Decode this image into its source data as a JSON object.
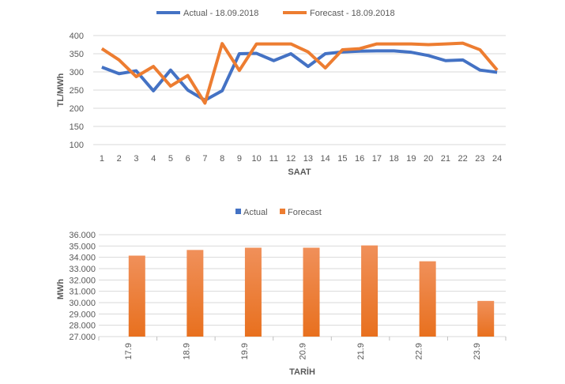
{
  "chart_data": [
    {
      "type": "line",
      "title": "",
      "xlabel": "SAAT",
      "ylabel": "TL/MWh",
      "ylim": [
        100,
        400
      ],
      "yticks": [
        100,
        150,
        200,
        250,
        300,
        350,
        400
      ],
      "x": [
        "1",
        "2",
        "3",
        "4",
        "5",
        "6",
        "7",
        "8",
        "9",
        "10",
        "11",
        "12",
        "13",
        "14",
        "15",
        "16",
        "17",
        "18",
        "19",
        "20",
        "21",
        "22",
        "23",
        "24"
      ],
      "legend_position": "top",
      "grid": true,
      "series": [
        {
          "name": "Actual - 18.09.2018",
          "color": "#4472c4",
          "values": [
            313,
            295,
            303,
            248,
            305,
            250,
            222,
            248,
            350,
            351,
            331,
            350,
            315,
            350,
            355,
            357,
            358,
            358,
            354,
            345,
            331,
            333,
            305,
            299
          ]
        },
        {
          "name": "Forecast - 18.09.2018",
          "color": "#ed7d31",
          "values": [
            364,
            333,
            287,
            315,
            261,
            290,
            214,
            378,
            304,
            377,
            377,
            377,
            355,
            311,
            361,
            364,
            377,
            377,
            377,
            375,
            377,
            379,
            361,
            305
          ]
        }
      ]
    },
    {
      "type": "bar",
      "title": "",
      "xlabel": "TARİH",
      "ylabel": "MWh",
      "ylim": [
        27000,
        36000
      ],
      "yticks": [
        "27.000",
        "28.000",
        "29.000",
        "30.000",
        "31.000",
        "32.000",
        "33.000",
        "34.000",
        "35.000",
        "36.000"
      ],
      "categories": [
        "17.9",
        "18.9",
        "19.9",
        "20.9",
        "21.9",
        "22.9",
        "23.9"
      ],
      "legend_position": "top",
      "grid": true,
      "series": [
        {
          "name": "Actual",
          "color": "#4472c4",
          "values": [
            null,
            null,
            null,
            null,
            null,
            null,
            null
          ]
        },
        {
          "name": "Forecast",
          "color": "#ed7d31",
          "values": [
            34150,
            34650,
            34850,
            34850,
            35050,
            33650,
            30150
          ]
        }
      ]
    }
  ]
}
